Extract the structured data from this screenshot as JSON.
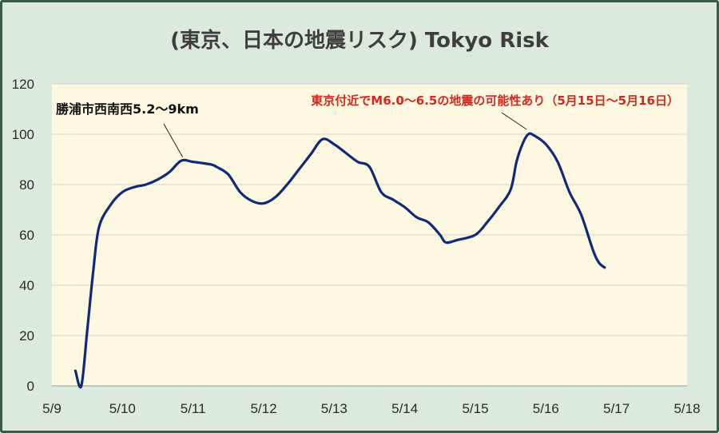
{
  "title": "(東京、日本の地震リスク) Tokyo Risk",
  "colors": {
    "plot_bg": "#fdf8e1",
    "frame_bg": "#dceadd",
    "line": "#102a78",
    "annotation_red": "#d2281e"
  },
  "chart_data": {
    "type": "line",
    "title": "(東京、日本の地震リスク) Tokyo Risk",
    "xlabel": "",
    "ylabel": "",
    "x_ticks": [
      "5/9",
      "5/10",
      "5/11",
      "5/12",
      "5/13",
      "5/14",
      "5/15",
      "5/16",
      "5/17",
      "5/18"
    ],
    "y_ticks": [
      0,
      20,
      40,
      60,
      80,
      100,
      120
    ],
    "ylim": [
      0,
      120
    ],
    "grid": "horizontal",
    "series": [
      {
        "values": [
          [
            "5/9 08:00",
            6
          ],
          [
            "5/9 10:00",
            0
          ],
          [
            "5/9 12:00",
            22
          ],
          [
            "5/9 14:00",
            45
          ],
          [
            "5/9 16:00",
            63
          ],
          [
            "5/9 20:00",
            72
          ],
          [
            "5/10 00:00",
            77
          ],
          [
            "5/10 04:00",
            79
          ],
          [
            "5/10 08:00",
            80
          ],
          [
            "5/10 12:00",
            82
          ],
          [
            "5/10 16:00",
            85
          ],
          [
            "5/10 20:00",
            89.5
          ],
          [
            "5/11 00:00",
            89
          ],
          [
            "5/11 06:00",
            88
          ],
          [
            "5/11 08:00",
            87
          ],
          [
            "5/11 12:00",
            84
          ],
          [
            "5/11 16:00",
            77
          ],
          [
            "5/11 20:00",
            73.5
          ],
          [
            "5/12 00:00",
            72.5
          ],
          [
            "5/12 04:00",
            75
          ],
          [
            "5/12 08:00",
            80
          ],
          [
            "5/12 12:00",
            86
          ],
          [
            "5/12 16:00",
            92
          ],
          [
            "5/12 20:00",
            98
          ],
          [
            "5/13 00:00",
            96
          ],
          [
            "5/13 04:00",
            92.5
          ],
          [
            "5/13 08:00",
            89
          ],
          [
            "5/13 12:00",
            87
          ],
          [
            "5/13 16:00",
            77
          ],
          [
            "5/13 20:00",
            74
          ],
          [
            "5/14 00:00",
            71
          ],
          [
            "5/14 04:00",
            67
          ],
          [
            "5/14 08:00",
            65
          ],
          [
            "5/14 12:00",
            60
          ],
          [
            "5/14 14:00",
            57
          ],
          [
            "5/14 18:00",
            58
          ],
          [
            "5/15 00:00",
            60
          ],
          [
            "5/15 04:00",
            65
          ],
          [
            "5/15 08:00",
            71
          ],
          [
            "5/15 12:00",
            78
          ],
          [
            "5/15 14:00",
            89
          ],
          [
            "5/15 16:00",
            96
          ],
          [
            "5/15 18:00",
            100
          ],
          [
            "5/15 20:00",
            99.5
          ],
          [
            "5/16 00:00",
            96
          ],
          [
            "5/16 04:00",
            89
          ],
          [
            "5/16 08:00",
            77
          ],
          [
            "5/16 12:00",
            68
          ],
          [
            "5/16 16:00",
            54
          ],
          [
            "5/16 18:00",
            49
          ],
          [
            "5/16 20:00",
            47
          ]
        ]
      }
    ],
    "annotations": [
      {
        "text": "勝浦市西南西5.2～9km",
        "color": "#111111",
        "points_to": [
          "5/10 21:00",
          89
        ]
      },
      {
        "text": "東京付近でM6.0～6.5の地震の可能性あり（5月15日～5月16日）",
        "color": "#d2281e",
        "points_to": [
          "5/15 18:00",
          100
        ]
      }
    ]
  }
}
